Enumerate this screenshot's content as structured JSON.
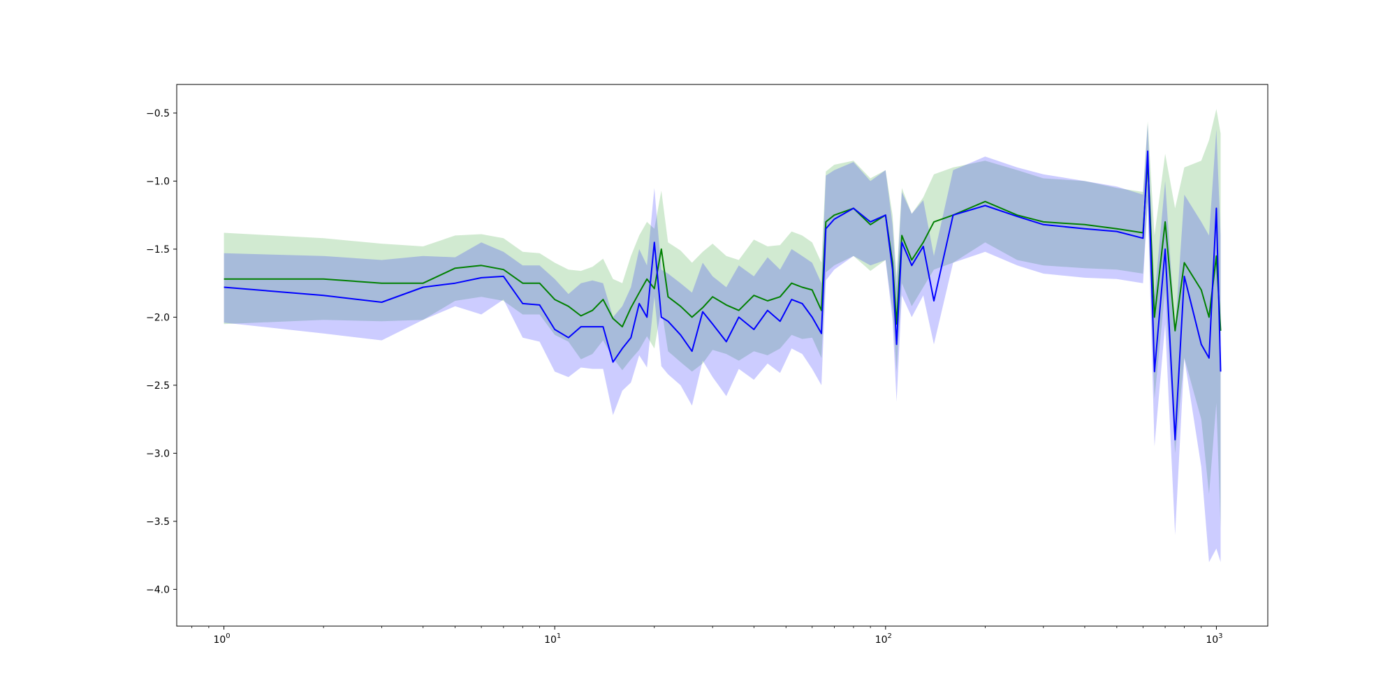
{
  "chart_data": {
    "type": "line",
    "title": "",
    "xlabel": "",
    "ylabel": "",
    "xscale": "log",
    "xlim": [
      0.72,
      1430
    ],
    "ylim": [
      -4.27,
      -0.29
    ],
    "grid": false,
    "legend": "none",
    "x_ticks": [
      1,
      10,
      100,
      1000
    ],
    "x_tick_labels": [
      {
        "base": "10",
        "exp": "0"
      },
      {
        "base": "10",
        "exp": "1"
      },
      {
        "base": "10",
        "exp": "2"
      },
      {
        "base": "10",
        "exp": "3"
      }
    ],
    "y_ticks": [
      -0.5,
      -1.0,
      -1.5,
      -2.0,
      -2.5,
      -3.0,
      -3.5,
      -4.0
    ],
    "y_tick_labels": [
      "−0.5",
      "−1.0",
      "−1.5",
      "−2.0",
      "−2.5",
      "−3.0",
      "−3.5",
      "−4.0"
    ],
    "series": [
      {
        "color": "#008000",
        "band_color": "#2ca02c",
        "band_opacity": 0.22,
        "x": [
          1,
          2,
          3,
          4,
          5,
          6,
          7,
          8,
          9,
          10,
          11,
          12,
          13,
          14,
          15,
          16,
          17,
          18,
          19,
          20,
          21,
          22,
          24,
          26,
          28,
          30,
          33,
          36,
          40,
          44,
          48,
          52,
          56,
          60,
          64,
          66,
          70,
          80,
          90,
          100,
          105,
          108,
          112,
          120,
          130,
          140,
          160,
          200,
          250,
          300,
          400,
          500,
          600,
          620,
          650,
          700,
          750,
          800,
          900,
          950,
          1000,
          1030
        ],
        "y": [
          -1.72,
          -1.72,
          -1.75,
          -1.75,
          -1.64,
          -1.62,
          -1.65,
          -1.75,
          -1.75,
          -1.87,
          -1.92,
          -1.99,
          -1.95,
          -1.87,
          -2.01,
          -2.07,
          -1.93,
          -1.82,
          -1.72,
          -1.79,
          -1.5,
          -1.85,
          -1.92,
          -2.0,
          -1.93,
          -1.85,
          -1.91,
          -1.95,
          -1.84,
          -1.88,
          -1.85,
          -1.75,
          -1.78,
          -1.8,
          -1.95,
          -1.3,
          -1.25,
          -1.2,
          -1.32,
          -1.25,
          -1.6,
          -2.05,
          -1.4,
          -1.58,
          -1.45,
          -1.3,
          -1.25,
          -1.15,
          -1.25,
          -1.3,
          -1.32,
          -1.35,
          -1.38,
          -0.85,
          -2.0,
          -1.3,
          -2.1,
          -1.6,
          -1.8,
          -2.0,
          -1.55,
          -2.1
        ],
        "upper": [
          -1.38,
          -1.42,
          -1.46,
          -1.48,
          -1.4,
          -1.39,
          -1.42,
          -1.52,
          -1.53,
          -1.6,
          -1.65,
          -1.66,
          -1.63,
          -1.57,
          -1.72,
          -1.75,
          -1.55,
          -1.4,
          -1.3,
          -1.35,
          -1.07,
          -1.45,
          -1.51,
          -1.6,
          -1.52,
          -1.46,
          -1.55,
          -1.58,
          -1.43,
          -1.48,
          -1.47,
          -1.37,
          -1.4,
          -1.45,
          -1.6,
          -0.93,
          -0.88,
          -0.85,
          -0.98,
          -0.92,
          -1.25,
          -1.7,
          -1.05,
          -1.24,
          -1.12,
          -0.95,
          -0.9,
          -0.85,
          -0.92,
          -0.98,
          -1.0,
          -1.05,
          -1.08,
          -0.56,
          -1.4,
          -0.8,
          -1.2,
          -0.9,
          -0.85,
          -0.7,
          -0.47,
          -0.65
        ],
        "lower": [
          -2.05,
          -2.02,
          -2.03,
          -2.02,
          -1.88,
          -1.85,
          -1.88,
          -1.98,
          -1.98,
          -2.13,
          -2.18,
          -2.31,
          -2.27,
          -2.17,
          -2.3,
          -2.39,
          -2.31,
          -2.24,
          -2.14,
          -2.23,
          -1.93,
          -2.25,
          -2.33,
          -2.4,
          -2.34,
          -2.24,
          -2.27,
          -2.32,
          -2.25,
          -2.28,
          -2.23,
          -2.13,
          -2.16,
          -2.15,
          -2.3,
          -1.67,
          -1.62,
          -1.55,
          -1.66,
          -1.58,
          -1.95,
          -2.4,
          -1.75,
          -1.92,
          -1.78,
          -1.65,
          -1.6,
          -1.45,
          -1.58,
          -1.62,
          -1.64,
          -1.65,
          -1.68,
          -1.14,
          -2.6,
          -1.8,
          -3.0,
          -2.3,
          -2.75,
          -3.3,
          -2.63,
          -3.55
        ]
      },
      {
        "color": "#0000ff",
        "band_color": "#0000ff",
        "band_opacity": 0.2,
        "x": [
          1,
          2,
          3,
          4,
          5,
          6,
          7,
          8,
          9,
          10,
          11,
          12,
          13,
          14,
          15,
          16,
          17,
          18,
          19,
          20,
          21,
          22,
          24,
          26,
          28,
          30,
          33,
          36,
          40,
          44,
          48,
          52,
          56,
          60,
          64,
          66,
          70,
          80,
          90,
          100,
          105,
          108,
          112,
          120,
          130,
          140,
          160,
          200,
          250,
          300,
          400,
          500,
          600,
          620,
          650,
          700,
          750,
          800,
          900,
          950,
          1000,
          1030
        ],
        "y": [
          -1.78,
          -1.84,
          -1.89,
          -1.78,
          -1.75,
          -1.71,
          -1.7,
          -1.9,
          -1.91,
          -2.09,
          -2.15,
          -2.07,
          -2.07,
          -2.07,
          -2.33,
          -2.23,
          -2.15,
          -1.9,
          -2.0,
          -1.45,
          -2.0,
          -2.03,
          -2.13,
          -2.25,
          -1.96,
          -2.05,
          -2.18,
          -2.0,
          -2.09,
          -1.95,
          -2.03,
          -1.87,
          -1.9,
          -2.0,
          -2.12,
          -1.35,
          -1.28,
          -1.2,
          -1.3,
          -1.25,
          -1.65,
          -2.2,
          -1.45,
          -1.62,
          -1.48,
          -1.88,
          -1.25,
          -1.18,
          -1.26,
          -1.32,
          -1.35,
          -1.37,
          -1.42,
          -0.78,
          -2.4,
          -1.5,
          -2.9,
          -1.7,
          -2.2,
          -2.3,
          -1.2,
          -2.4
        ],
        "upper": [
          -1.53,
          -1.55,
          -1.58,
          -1.55,
          -1.56,
          -1.45,
          -1.52,
          -1.62,
          -1.62,
          -1.72,
          -1.83,
          -1.75,
          -1.73,
          -1.75,
          -2.0,
          -1.92,
          -1.78,
          -1.5,
          -1.62,
          -1.05,
          -1.65,
          -1.68,
          -1.75,
          -1.82,
          -1.6,
          -1.7,
          -1.78,
          -1.62,
          -1.7,
          -1.56,
          -1.65,
          -1.5,
          -1.55,
          -1.6,
          -1.75,
          -0.96,
          -0.92,
          -0.86,
          -1.0,
          -0.92,
          -1.32,
          -1.78,
          -1.08,
          -1.24,
          -1.14,
          -1.55,
          -0.92,
          -0.82,
          -0.9,
          -0.95,
          -1.0,
          -1.04,
          -1.1,
          -0.58,
          -1.85,
          -1.0,
          -2.1,
          -1.1,
          -1.3,
          -1.4,
          -0.62,
          -1.4
        ],
        "lower": [
          -2.04,
          -2.12,
          -2.17,
          -2.02,
          -1.92,
          -1.98,
          -1.87,
          -2.15,
          -2.18,
          -2.4,
          -2.44,
          -2.37,
          -2.38,
          -2.38,
          -2.72,
          -2.54,
          -2.48,
          -2.28,
          -2.37,
          -1.85,
          -2.36,
          -2.42,
          -2.5,
          -2.65,
          -2.32,
          -2.44,
          -2.58,
          -2.38,
          -2.46,
          -2.34,
          -2.41,
          -2.23,
          -2.27,
          -2.38,
          -2.5,
          -1.73,
          -1.65,
          -1.55,
          -1.62,
          -1.58,
          -2.02,
          -2.62,
          -1.84,
          -2.0,
          -1.84,
          -2.2,
          -1.6,
          -1.52,
          -1.62,
          -1.68,
          -1.71,
          -1.72,
          -1.75,
          -1.15,
          -2.95,
          -2.05,
          -3.6,
          -2.3,
          -3.1,
          -3.8,
          -3.7,
          -3.8
        ]
      }
    ]
  }
}
